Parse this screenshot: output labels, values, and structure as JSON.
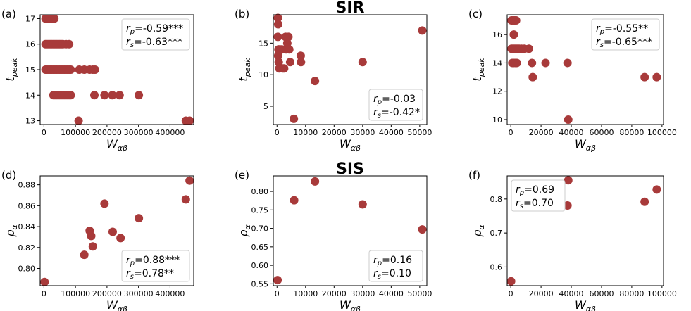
{
  "chart_data": [
    {
      "type": "scatter",
      "panel_label": "(a)",
      "title": "",
      "xlabel": "W",
      "xlabel_sub": "αβ",
      "ylabel": "t",
      "ylabel_sub": "peak",
      "xlim": [
        -12000,
        475000
      ],
      "ylim": [
        12.85,
        17.15
      ],
      "xticks": [
        0,
        100000,
        200000,
        300000,
        400000
      ],
      "xtick_labels": [
        "0",
        "100000",
        "200000",
        "300000",
        "400000"
      ],
      "yticks": [
        13,
        14,
        15,
        16,
        17
      ],
      "ytick_labels": [
        "13",
        "14",
        "15",
        "16",
        "17"
      ],
      "stats": [
        {
          "sym": "r",
          "sub": "p",
          "val": "=-0.59***"
        },
        {
          "sym": "r",
          "sub": "s",
          "val": "=-0.63***"
        }
      ],
      "stats_loc": "top-right",
      "points": [
        [
          5000,
          17
        ],
        [
          9000,
          17
        ],
        [
          12000,
          17
        ],
        [
          15000,
          17
        ],
        [
          18000,
          17
        ],
        [
          22000,
          17
        ],
        [
          26000,
          17
        ],
        [
          30000,
          17
        ],
        [
          33000,
          17
        ],
        [
          5000,
          16
        ],
        [
          10000,
          16
        ],
        [
          15000,
          16
        ],
        [
          20000,
          16
        ],
        [
          25000,
          16
        ],
        [
          30000,
          16
        ],
        [
          35000,
          16
        ],
        [
          40000,
          16
        ],
        [
          45000,
          16
        ],
        [
          50000,
          16
        ],
        [
          55000,
          16
        ],
        [
          60000,
          16
        ],
        [
          70000,
          16
        ],
        [
          80000,
          16
        ],
        [
          5000,
          15
        ],
        [
          10000,
          15
        ],
        [
          15000,
          15
        ],
        [
          20000,
          15
        ],
        [
          25000,
          15
        ],
        [
          30000,
          15
        ],
        [
          35000,
          15
        ],
        [
          40000,
          15
        ],
        [
          45000,
          15
        ],
        [
          50000,
          15
        ],
        [
          55000,
          15
        ],
        [
          60000,
          15
        ],
        [
          65000,
          15
        ],
        [
          70000,
          15
        ],
        [
          75000,
          15
        ],
        [
          80000,
          15
        ],
        [
          85000,
          15
        ],
        [
          112000,
          15
        ],
        [
          128000,
          15
        ],
        [
          145000,
          15
        ],
        [
          155000,
          15
        ],
        [
          162000,
          15
        ],
        [
          30000,
          14
        ],
        [
          35000,
          14
        ],
        [
          40000,
          14
        ],
        [
          45000,
          14
        ],
        [
          50000,
          14
        ],
        [
          55000,
          14
        ],
        [
          60000,
          14
        ],
        [
          65000,
          14
        ],
        [
          70000,
          14
        ],
        [
          75000,
          14
        ],
        [
          80000,
          14
        ],
        [
          85000,
          14
        ],
        [
          160000,
          14
        ],
        [
          192000,
          14
        ],
        [
          217000,
          14
        ],
        [
          240000,
          14
        ],
        [
          301000,
          14
        ],
        [
          110000,
          13
        ],
        [
          450000,
          13
        ],
        [
          462000,
          13
        ]
      ]
    },
    {
      "type": "scatter",
      "panel_label": "(b)",
      "title": "SIR",
      "xlabel": "W",
      "xlabel_sub": "αβ",
      "ylabel": "t",
      "ylabel_sub": "peak",
      "xlim": [
        -1300,
        52500
      ],
      "ylim": [
        2.1,
        19.5
      ],
      "xticks": [
        0,
        10000,
        20000,
        30000,
        40000,
        50000
      ],
      "xtick_labels": [
        "0",
        "10000",
        "20000",
        "30000",
        "40000",
        "50000"
      ],
      "yticks": [
        5,
        10,
        15
      ],
      "ytick_labels": [
        "5",
        "10",
        "15"
      ],
      "stats": [
        {
          "sym": "r",
          "sub": "p",
          "val": "=-0.03"
        },
        {
          "sym": "r",
          "sub": "s",
          "val": "=-0.42*"
        }
      ],
      "stats_loc": "bottom-right",
      "points": [
        [
          300,
          19
        ],
        [
          400,
          18
        ],
        [
          300,
          16
        ],
        [
          500,
          14
        ],
        [
          700,
          14
        ],
        [
          400,
          13
        ],
        [
          600,
          12
        ],
        [
          800,
          11
        ],
        [
          1200,
          14
        ],
        [
          1700,
          14
        ],
        [
          2000,
          11
        ],
        [
          2500,
          11
        ],
        [
          3000,
          16
        ],
        [
          3200,
          14
        ],
        [
          3600,
          15
        ],
        [
          4000,
          16
        ],
        [
          4300,
          14
        ],
        [
          4600,
          12
        ],
        [
          5900,
          3
        ],
        [
          8300,
          13
        ],
        [
          8400,
          12
        ],
        [
          13300,
          9
        ],
        [
          30000,
          12
        ],
        [
          50900,
          17
        ]
      ]
    },
    {
      "type": "scatter",
      "panel_label": "(c)",
      "title": "",
      "xlabel": "W",
      "xlabel_sub": "αβ",
      "ylabel": "t",
      "ylabel_sub": "peak",
      "xlim": [
        -2400,
        101000
      ],
      "ylim": [
        9.65,
        17.4
      ],
      "xticks": [
        0,
        20000,
        40000,
        60000,
        80000,
        100000
      ],
      "xtick_labels": [
        "0",
        "20000",
        "40000",
        "60000",
        "80000",
        "100000"
      ],
      "yticks": [
        10,
        12,
        14,
        16
      ],
      "ytick_labels": [
        "10",
        "12",
        "14",
        "16"
      ],
      "stats": [
        {
          "sym": "r",
          "sub": "p",
          "val": "=-0.55**"
        },
        {
          "sym": "r",
          "sub": "s",
          "val": "=-0.65***"
        }
      ],
      "stats_loc": "top-right",
      "points": [
        [
          500,
          17
        ],
        [
          1500,
          17
        ],
        [
          2500,
          17
        ],
        [
          3500,
          17
        ],
        [
          2000,
          16
        ],
        [
          500,
          15
        ],
        [
          1500,
          15
        ],
        [
          2500,
          15
        ],
        [
          3500,
          15
        ],
        [
          4500,
          15
        ],
        [
          5500,
          15
        ],
        [
          7000,
          15
        ],
        [
          9000,
          15
        ],
        [
          12000,
          15
        ],
        [
          1000,
          14
        ],
        [
          2000,
          14
        ],
        [
          3000,
          14
        ],
        [
          4000,
          14
        ],
        [
          14000,
          14
        ],
        [
          14500,
          13
        ],
        [
          23000,
          14
        ],
        [
          37500,
          14
        ],
        [
          38000,
          10
        ],
        [
          88500,
          13
        ],
        [
          96500,
          13
        ]
      ]
    },
    {
      "type": "scatter",
      "panel_label": "(d)",
      "title": "",
      "xlabel": "W",
      "xlabel_sub": "αβ",
      "ylabel": "ρ",
      "ylabel_sub": "α",
      "xlim": [
        -12000,
        475000
      ],
      "ylim": [
        0.7835,
        0.8885
      ],
      "xticks": [
        0,
        100000,
        200000,
        300000,
        400000
      ],
      "xtick_labels": [
        "0",
        "100000",
        "200000",
        "300000",
        "400000"
      ],
      "yticks": [
        0.8,
        0.82,
        0.84,
        0.86,
        0.88
      ],
      "ytick_labels": [
        "0.80",
        "0.82",
        "0.84",
        "0.86",
        "0.88"
      ],
      "stats": [
        {
          "sym": "r",
          "sub": "p",
          "val": "=0.88***"
        },
        {
          "sym": "r",
          "sub": "s",
          "val": "=0.78**"
        }
      ],
      "stats_loc": "bottom-right",
      "points": [
        [
          2000,
          0.787
        ],
        [
          128000,
          0.813
        ],
        [
          145000,
          0.836
        ],
        [
          150000,
          0.831
        ],
        [
          155000,
          0.821
        ],
        [
          192000,
          0.862
        ],
        [
          218000,
          0.835
        ],
        [
          243000,
          0.829
        ],
        [
          301000,
          0.848
        ],
        [
          450000,
          0.866
        ],
        [
          462000,
          0.884
        ]
      ]
    },
    {
      "type": "scatter",
      "panel_label": "(e)",
      "title": "SIS",
      "xlabel": "W",
      "xlabel_sub": "αβ",
      "ylabel": "ρ",
      "ylabel_sub": "α",
      "xlim": [
        -1300,
        52500
      ],
      "ylim": [
        0.545,
        0.842
      ],
      "xticks": [
        0,
        10000,
        20000,
        30000,
        40000,
        50000
      ],
      "xtick_labels": [
        "0",
        "10000",
        "20000",
        "30000",
        "40000",
        "50000"
      ],
      "yticks": [
        0.55,
        0.6,
        0.65,
        0.7,
        0.75,
        0.8
      ],
      "ytick_labels": [
        "0.55",
        "0.60",
        "0.65",
        "0.70",
        "0.75",
        "0.80"
      ],
      "stats": [
        {
          "sym": "r",
          "sub": "p",
          "val": "=0.16"
        },
        {
          "sym": "r",
          "sub": "s",
          "val": "=0.10"
        }
      ],
      "stats_loc": "bottom-right",
      "points": [
        [
          200,
          0.56
        ],
        [
          6000,
          0.776
        ],
        [
          13300,
          0.827
        ],
        [
          30000,
          0.765
        ],
        [
          50900,
          0.697
        ]
      ]
    },
    {
      "type": "scatter",
      "panel_label": "(f)",
      "title": "",
      "xlabel": "W",
      "xlabel_sub": "αβ",
      "ylabel": "ρ",
      "ylabel_sub": "α",
      "xlim": [
        -2400,
        101000
      ],
      "ylim": [
        0.545,
        0.868
      ],
      "xticks": [
        0,
        20000,
        40000,
        60000,
        80000,
        100000
      ],
      "xtick_labels": [
        "0",
        "20000",
        "40000",
        "60000",
        "80000",
        "100000"
      ],
      "yticks": [
        0.6,
        0.7,
        0.8
      ],
      "ytick_labels": [
        "0.6",
        "0.7",
        "0.8"
      ],
      "stats": [
        {
          "sym": "r",
          "sub": "p",
          "val": "=0.69"
        },
        {
          "sym": "r",
          "sub": "s",
          "val": "=0.70"
        }
      ],
      "stats_loc": "top-left",
      "points": [
        [
          200,
          0.558
        ],
        [
          37500,
          0.781
        ],
        [
          38000,
          0.855
        ],
        [
          88500,
          0.792
        ],
        [
          96500,
          0.828
        ]
      ]
    }
  ],
  "colors": {
    "marker": "#a83a3a",
    "frame": "#000000",
    "legend_border": "#cccccc"
  }
}
